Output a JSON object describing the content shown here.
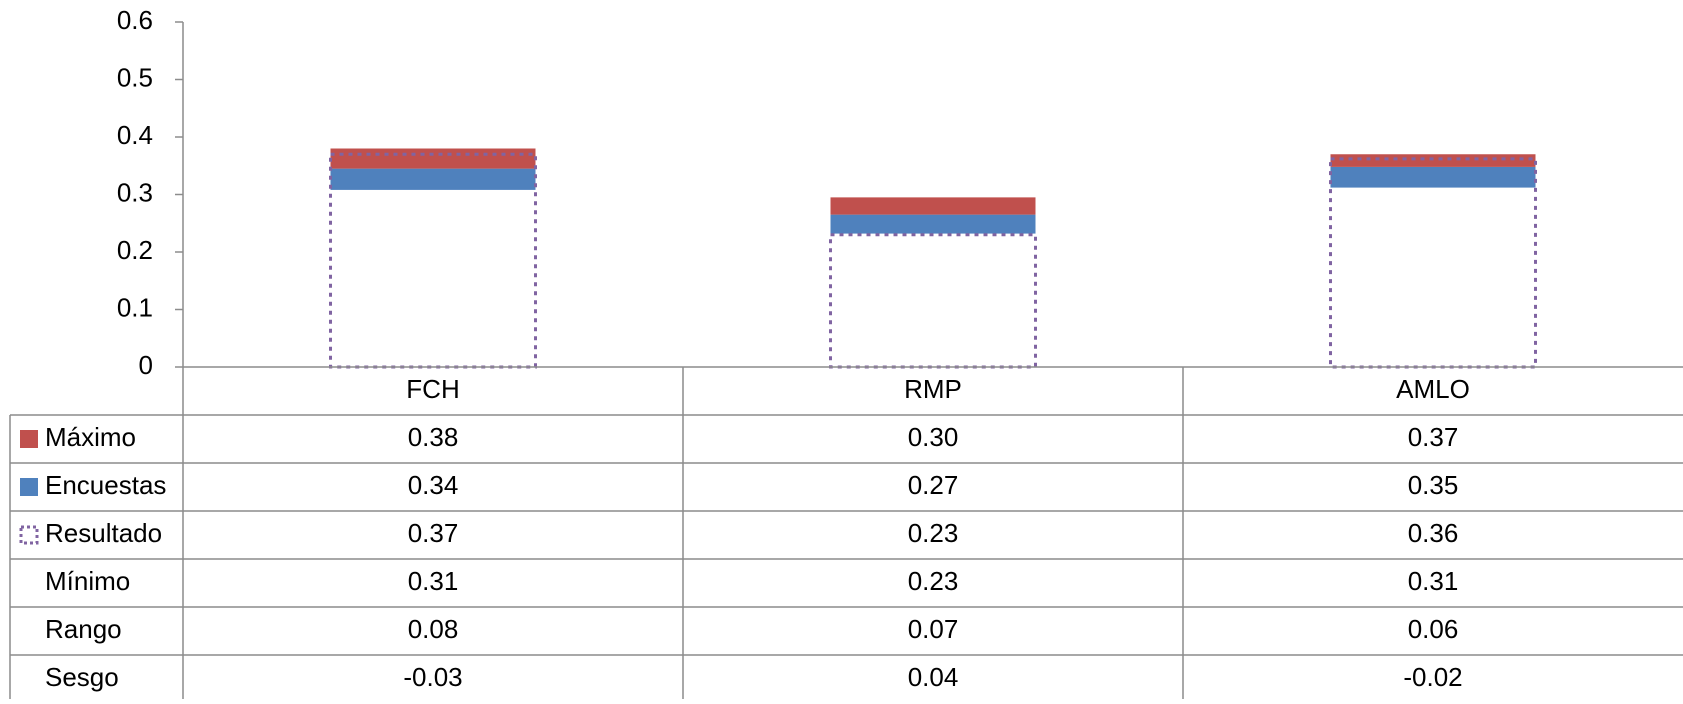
{
  "chart_data": {
    "type": "bar",
    "categories": [
      "FCH",
      "RMP",
      "AMLO"
    ],
    "ylim": [
      0,
      0.6
    ],
    "y_ticks": [
      "0",
      "0.1",
      "0.2",
      "0.3",
      "0.4",
      "0.5",
      "0.6"
    ],
    "y_tick_values": [
      0,
      0.1,
      0.2,
      0.3,
      0.4,
      0.5,
      0.6
    ],
    "grid": false,
    "legend": "data-table",
    "series": [
      {
        "name": "Máximo",
        "values": [
          0.38,
          0.295,
          0.37
        ],
        "color": "#C0504D"
      },
      {
        "name": "Encuestas",
        "values": [
          0.345,
          0.265,
          0.348
        ],
        "color": "#4F81BD"
      },
      {
        "name": "Resultado",
        "values": [
          0.37,
          0.23,
          0.362
        ],
        "color": "#8064A2"
      },
      {
        "name": "Mínimo",
        "values": [
          0.308,
          0.232,
          0.312
        ]
      }
    ],
    "table": {
      "rows": [
        {
          "key": "maximo",
          "label": "Máximo",
          "marker": "solid",
          "color": "#C0504D",
          "values": [
            "0.38",
            "0.30",
            "0.37"
          ]
        },
        {
          "key": "encuestas",
          "label": "Encuestas",
          "marker": "solid",
          "color": "#4F81BD",
          "values": [
            "0.34",
            "0.27",
            "0.35"
          ]
        },
        {
          "key": "resultado",
          "label": "Resultado",
          "marker": "dotted",
          "color": "#8064A2",
          "values": [
            "0.37",
            "0.23",
            "0.36"
          ]
        },
        {
          "key": "minimo",
          "label": "Mínimo",
          "marker": "none",
          "values": [
            "0.31",
            "0.23",
            "0.31"
          ]
        },
        {
          "key": "rango",
          "label": "Rango",
          "marker": "none",
          "values": [
            "0.08",
            "0.07",
            "0.06"
          ]
        },
        {
          "key": "sesgo",
          "label": "Sesgo",
          "marker": "none",
          "values": [
            "-0.03",
            "0.04",
            "-0.02"
          ]
        }
      ]
    }
  }
}
